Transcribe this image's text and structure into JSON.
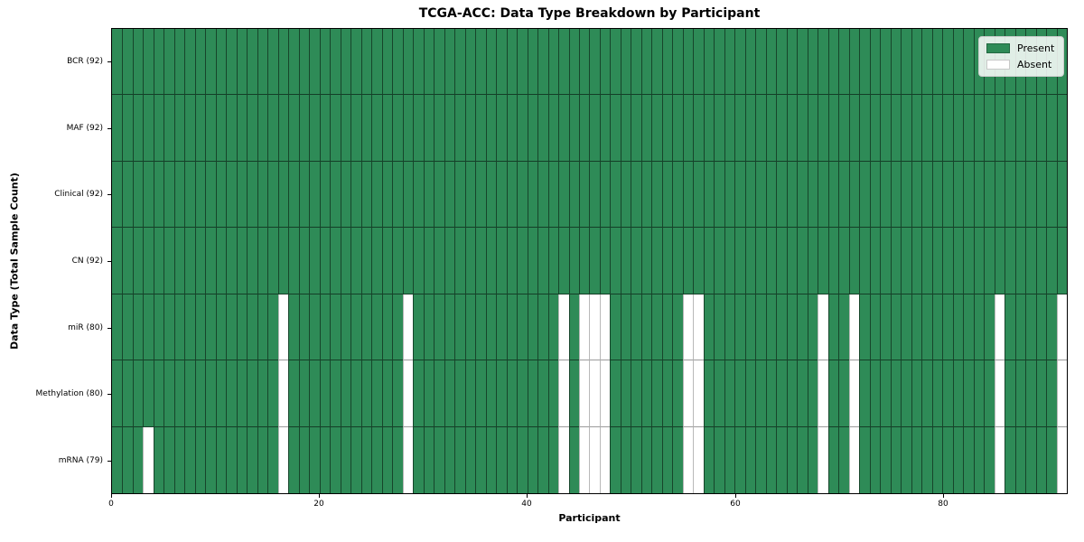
{
  "chart_data": {
    "type": "heatmap",
    "title": "TCGA-ACC: Data Type Breakdown by Participant",
    "xlabel": "Participant",
    "ylabel": "Data Type (Total Sample Count)",
    "n_participants": 92,
    "xlim": [
      0,
      92
    ],
    "x_ticks": [
      "0",
      "20",
      "40",
      "60",
      "80"
    ],
    "x_tick_values": [
      0,
      20,
      40,
      60,
      80
    ],
    "rows": [
      {
        "label": "BCR (92)",
        "data_type": "BCR",
        "total": 92,
        "absent_participants": []
      },
      {
        "label": "MAF (92)",
        "data_type": "MAF",
        "total": 92,
        "absent_participants": []
      },
      {
        "label": "Clinical (92)",
        "data_type": "Clinical",
        "total": 92,
        "absent_participants": []
      },
      {
        "label": "CN (92)",
        "data_type": "CN",
        "total": 92,
        "absent_participants": []
      },
      {
        "label": "miR (80)",
        "data_type": "miR",
        "total": 80,
        "absent_participants": [
          16,
          28,
          43,
          45,
          46,
          47,
          55,
          56,
          68,
          71,
          85,
          91
        ]
      },
      {
        "label": "Methylation (80)",
        "data_type": "Methylation",
        "total": 80,
        "absent_participants": [
          16,
          28,
          43,
          45,
          46,
          47,
          55,
          56,
          68,
          71,
          85,
          91
        ]
      },
      {
        "label": "mRNA (79)",
        "data_type": "mRNA",
        "total": 79,
        "absent_participants": [
          3,
          16,
          28,
          43,
          45,
          46,
          47,
          55,
          56,
          68,
          71,
          85,
          91
        ]
      }
    ],
    "legend": {
      "position": "upper-right",
      "items": [
        {
          "label": "Present",
          "color": "#2e8b57"
        },
        {
          "label": "Absent",
          "color": "#ffffff"
        }
      ]
    },
    "colors": {
      "present": "#2e8b57",
      "absent": "#ffffff",
      "cell_edge_on_present": "rgba(0,0,0,0.5)",
      "cell_edge_on_absent": "#b9b9b9",
      "row_separator_on_present": "rgba(0,0,0,0.55)",
      "row_separator_on_absent": "#9b9b9b",
      "plot_border": "#000000"
    }
  }
}
